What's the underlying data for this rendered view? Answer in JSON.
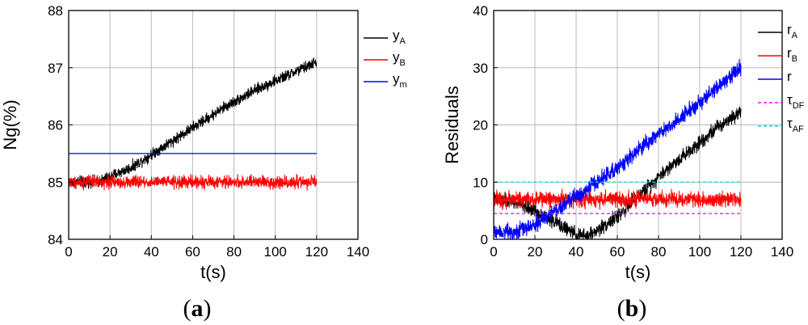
{
  "chart_data": [
    {
      "type": "line",
      "panel_label": {
        "open": "(",
        "letter": "a",
        "close": ")"
      },
      "xlabel": "t(s)",
      "ylabel": "Ng(%)",
      "xlim": [
        0,
        140
      ],
      "ylim": [
        84,
        88
      ],
      "xticks": [
        "0",
        "20",
        "40",
        "60",
        "80",
        "100",
        "120",
        "140"
      ],
      "yticks": [
        "84",
        "85",
        "86",
        "87",
        "88"
      ],
      "grid": true,
      "legend_position": "top-right",
      "series": [
        {
          "name": "y",
          "sub": "A",
          "color": "#000000",
          "kind": "noisy",
          "x": [
            0,
            15,
            30,
            45,
            60,
            75,
            90,
            105,
            120
          ],
          "y": [
            85.0,
            85.02,
            85.25,
            85.6,
            85.95,
            86.3,
            86.6,
            86.85,
            87.1
          ],
          "noise": 0.07
        },
        {
          "name": "y",
          "sub": "B",
          "color": "#ff0000",
          "kind": "noisy",
          "x": [
            0,
            120
          ],
          "y": [
            85.0,
            85.0
          ],
          "noise": 0.08
        },
        {
          "name": "y",
          "sub": "m",
          "color": "#0000ff",
          "kind": "line",
          "x": [
            0,
            120
          ],
          "y": [
            85.5,
            85.5
          ]
        }
      ]
    },
    {
      "type": "line",
      "panel_label": {
        "open": "(",
        "letter": "b",
        "close": ")"
      },
      "xlabel": "t(s)",
      "ylabel": "Residuals",
      "xlim": [
        0,
        140
      ],
      "ylim": [
        0,
        40
      ],
      "xticks": [
        "0",
        "20",
        "40",
        "60",
        "80",
        "100",
        "120",
        "140"
      ],
      "yticks": [
        "0",
        "10",
        "20",
        "30",
        "40"
      ],
      "grid": true,
      "legend_position": "top-right",
      "series": [
        {
          "name": "r",
          "sub": "A",
          "color": "#000000",
          "kind": "noisy",
          "x": [
            0,
            10,
            20,
            30,
            40,
            45,
            50,
            60,
            70,
            80,
            90,
            100,
            110,
            120
          ],
          "y": [
            7,
            6.5,
            5,
            3,
            0.8,
            0.5,
            1.5,
            4,
            7.5,
            11,
            14,
            17,
            20,
            22.5
          ],
          "noise": 0.9
        },
        {
          "name": "r",
          "sub": "B",
          "color": "#ff0000",
          "kind": "noisy",
          "x": [
            0,
            120
          ],
          "y": [
            7.0,
            7.0
          ],
          "noise": 1.0
        },
        {
          "name": "r",
          "sub": "",
          "color": "#0000ff",
          "kind": "noisy",
          "x": [
            0,
            10,
            20,
            30,
            40,
            50,
            60,
            70,
            80,
            90,
            100,
            110,
            120
          ],
          "y": [
            1.5,
            1.3,
            2.5,
            5,
            7.5,
            10,
            12.5,
            15.5,
            18.5,
            21,
            24,
            27,
            30
          ],
          "noise": 1.0
        },
        {
          "name": "τ",
          "sub": "DF",
          "color": "#ff00ff",
          "kind": "dashed",
          "x": [
            0,
            120
          ],
          "y": [
            4.5,
            4.5
          ]
        },
        {
          "name": "τ",
          "sub": "AF",
          "color": "#00dddd",
          "kind": "dashed",
          "x": [
            0,
            120
          ],
          "y": [
            10.0,
            10.0
          ]
        }
      ]
    }
  ]
}
